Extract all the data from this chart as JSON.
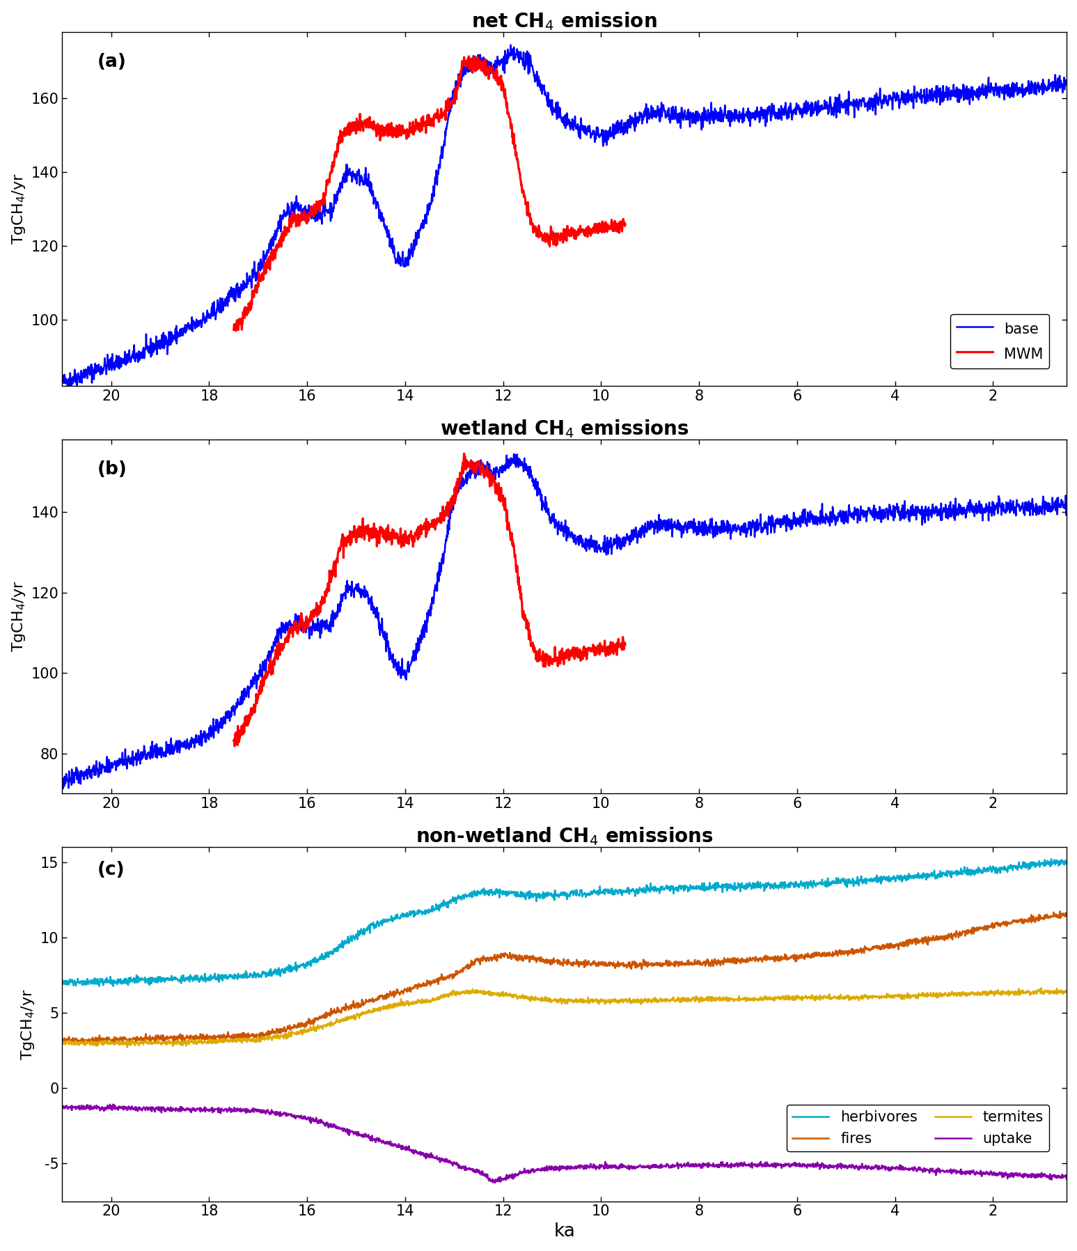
{
  "title_a": "net CH$_4$ emission",
  "title_b": "wetland CH$_4$ emissions",
  "title_c": "non-wetland CH$_4$ emissions",
  "ylabel": "TgCH$_4$/yr",
  "xlabel": "ka",
  "panel_labels": [
    "(a)",
    "(b)",
    "(c)"
  ],
  "legend_a": [
    "base",
    "MWM"
  ],
  "legend_c": [
    "herbivores",
    "fires",
    "termites",
    "uptake"
  ],
  "colors_a": [
    "#0000FF",
    "#FF0000"
  ],
  "colors_b": [
    "#0000FF",
    "#FF0000"
  ],
  "colors_c": [
    "#00AACC",
    "#CC5500",
    "#DDAA00",
    "#8800AA"
  ],
  "xlim": [
    21,
    0.5
  ],
  "ylim_a": [
    82,
    178
  ],
  "ylim_b": [
    70,
    158
  ],
  "ylim_c": [
    -7.5,
    16
  ],
  "yticks_a": [
    100,
    120,
    140,
    160
  ],
  "yticks_b": [
    80,
    100,
    120,
    140
  ],
  "yticks_c": [
    -5,
    0,
    5,
    10,
    15
  ],
  "xticks": [
    20,
    18,
    16,
    14,
    12,
    10,
    8,
    6,
    4,
    2
  ],
  "title_fontsize": 20,
  "label_fontsize": 16,
  "tick_fontsize": 15,
  "legend_fontsize": 15,
  "linewidth": 1.8
}
